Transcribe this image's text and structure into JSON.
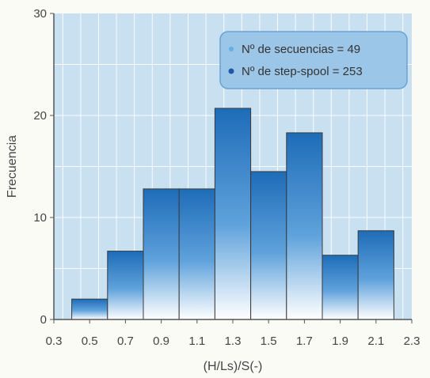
{
  "chart_data": {
    "type": "histogram",
    "title": "",
    "xlabel": "(H/Ls)/S(-)",
    "ylabel": "Frecuencia",
    "xlim": [
      0.3,
      2.3
    ],
    "ylim": [
      0,
      30
    ],
    "x_ticks": [
      "0.3",
      "0.5",
      "0.7",
      "0.9",
      "1.1",
      "1.3",
      "1.5",
      "1.7",
      "1.9",
      "2.1",
      "2.3"
    ],
    "y_ticks": [
      "0",
      "10",
      "20",
      "30"
    ],
    "bin_edges": [
      0.4,
      0.6,
      0.8,
      1.0,
      1.2,
      1.4,
      1.6,
      1.8,
      2.0,
      2.2
    ],
    "values": [
      2,
      6.7,
      12.8,
      12.8,
      20.7,
      14.5,
      18.3,
      6.3,
      8.7
    ],
    "grid": true,
    "legend_position": "top-right",
    "legend": [
      "Nº de secuencias = 49",
      "Nº de step-spool = 253"
    ],
    "colors": {
      "plot_bg": "#c9e0f1",
      "bar_top": "#1e6cb8",
      "bar_bottom": "#ffffff",
      "bar_edge": "#3a3a3a",
      "grid": "#ffffff",
      "legend_bg": "#9cc6e8",
      "legend_border": "#6aa2d3",
      "marker_light": "#5fb0e4",
      "marker_dark": "#1c5aa8"
    }
  }
}
